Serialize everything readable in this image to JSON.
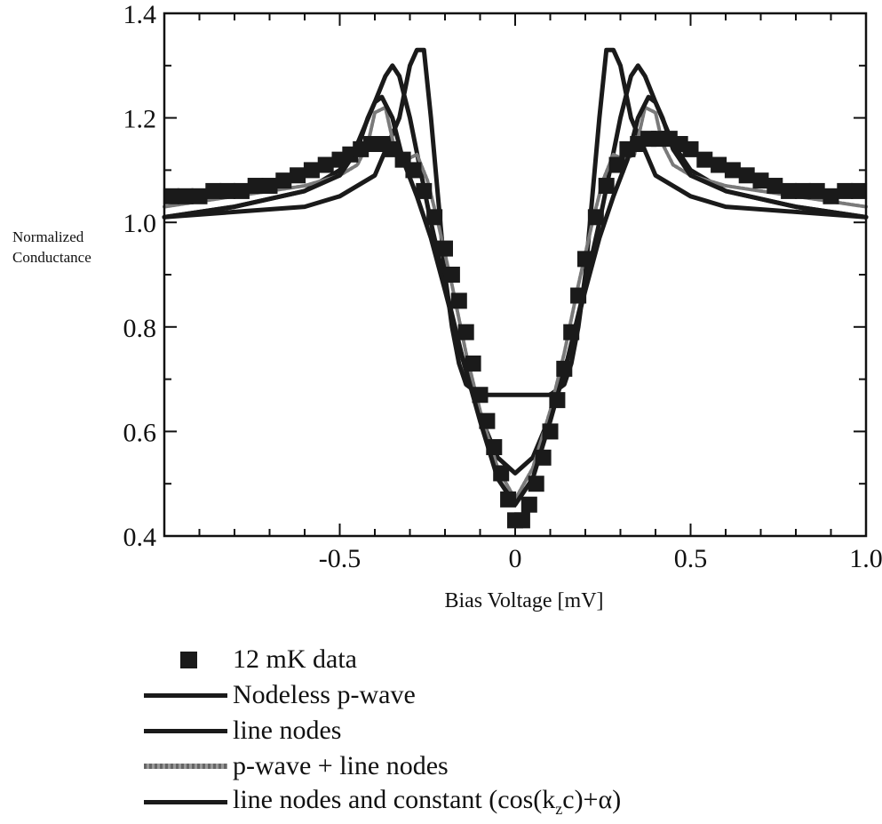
{
  "chart_data": {
    "type": "line",
    "title": "",
    "xlabel": "Bias Voltage [mV]",
    "ylabel_lines": [
      "Normalized",
      "Conductance"
    ],
    "xlim": [
      -1.0,
      1.0
    ],
    "ylim": [
      0.4,
      1.4
    ],
    "x_ticks": [
      -0.5,
      0,
      0.5,
      1.0
    ],
    "x_tick_labels": [
      "-0.5",
      "0",
      "0.5",
      "1.0"
    ],
    "y_ticks": [
      0.4,
      0.6,
      0.8,
      1.0,
      1.2,
      1.4
    ],
    "y_tick_labels": [
      "0.4",
      "0.6",
      "0.8",
      "1.0",
      "1.2",
      "1.4"
    ],
    "grid": false,
    "legend_position": "below",
    "series": [
      {
        "name": "12 mK data",
        "style": "markers",
        "color": "#1a1a1a",
        "x": [
          -0.98,
          -0.94,
          -0.9,
          -0.86,
          -0.82,
          -0.78,
          -0.74,
          -0.7,
          -0.66,
          -0.62,
          -0.58,
          -0.54,
          -0.5,
          -0.47,
          -0.44,
          -0.41,
          -0.38,
          -0.35,
          -0.32,
          -0.29,
          -0.26,
          -0.23,
          -0.2,
          -0.18,
          -0.16,
          -0.14,
          -0.12,
          -0.1,
          -0.08,
          -0.06,
          -0.04,
          -0.02,
          0.0,
          0.02,
          0.04,
          0.06,
          0.08,
          0.1,
          0.12,
          0.14,
          0.16,
          0.18,
          0.2,
          0.23,
          0.26,
          0.29,
          0.32,
          0.35,
          0.38,
          0.41,
          0.44,
          0.47,
          0.5,
          0.54,
          0.58,
          0.62,
          0.66,
          0.7,
          0.74,
          0.78,
          0.82,
          0.86,
          0.9,
          0.94,
          0.98
        ],
        "y": [
          1.05,
          1.05,
          1.05,
          1.06,
          1.06,
          1.06,
          1.07,
          1.07,
          1.08,
          1.09,
          1.1,
          1.11,
          1.12,
          1.13,
          1.14,
          1.15,
          1.15,
          1.14,
          1.12,
          1.1,
          1.06,
          1.01,
          0.95,
          0.9,
          0.85,
          0.79,
          0.73,
          0.67,
          0.62,
          0.57,
          0.52,
          0.47,
          0.43,
          0.43,
          0.46,
          0.5,
          0.55,
          0.6,
          0.66,
          0.72,
          0.79,
          0.86,
          0.93,
          1.01,
          1.07,
          1.11,
          1.14,
          1.15,
          1.16,
          1.16,
          1.16,
          1.15,
          1.14,
          1.12,
          1.11,
          1.1,
          1.09,
          1.08,
          1.07,
          1.06,
          1.06,
          1.06,
          1.05,
          1.06,
          1.06
        ]
      },
      {
        "name": "Nodeless p-wave",
        "style": "line",
        "color": "#1a1a1a",
        "x": [
          -1.0,
          -0.8,
          -0.6,
          -0.5,
          -0.4,
          -0.33,
          -0.3,
          -0.28,
          -0.26,
          -0.24,
          -0.22,
          -0.2,
          -0.18,
          -0.16,
          -0.14,
          -0.12,
          -0.1,
          -0.05,
          0.0,
          0.05,
          0.1,
          0.12,
          0.14,
          0.16,
          0.18,
          0.2,
          0.22,
          0.24,
          0.26,
          0.28,
          0.3,
          0.33,
          0.4,
          0.5,
          0.6,
          0.8,
          1.0
        ],
        "y": [
          1.01,
          1.02,
          1.03,
          1.05,
          1.09,
          1.2,
          1.3,
          1.33,
          1.33,
          1.2,
          1.05,
          0.9,
          0.8,
          0.73,
          0.69,
          0.68,
          0.67,
          0.67,
          0.67,
          0.67,
          0.67,
          0.68,
          0.69,
          0.73,
          0.8,
          0.9,
          1.05,
          1.2,
          1.33,
          1.33,
          1.3,
          1.2,
          1.09,
          1.05,
          1.03,
          1.02,
          1.01
        ]
      },
      {
        "name": "line nodes",
        "style": "line",
        "color": "#1a1a1a",
        "x": [
          -1.0,
          -0.8,
          -0.6,
          -0.5,
          -0.45,
          -0.4,
          -0.37,
          -0.35,
          -0.33,
          -0.3,
          -0.27,
          -0.24,
          -0.2,
          -0.15,
          -0.1,
          -0.05,
          0.0,
          0.05,
          0.1,
          0.15,
          0.2,
          0.24,
          0.27,
          0.3,
          0.33,
          0.35,
          0.37,
          0.4,
          0.45,
          0.5,
          0.6,
          0.8,
          1.0
        ],
        "y": [
          1.01,
          1.03,
          1.06,
          1.1,
          1.15,
          1.23,
          1.28,
          1.3,
          1.28,
          1.2,
          1.1,
          1.0,
          0.88,
          0.74,
          0.63,
          0.55,
          0.52,
          0.55,
          0.63,
          0.74,
          0.88,
          1.0,
          1.1,
          1.2,
          1.28,
          1.3,
          1.28,
          1.23,
          1.15,
          1.1,
          1.06,
          1.03,
          1.01
        ]
      },
      {
        "name": "p-wave + line nodes",
        "style": "line",
        "color": "#7a7a7a",
        "x": [
          -1.0,
          -0.8,
          -0.6,
          -0.5,
          -0.45,
          -0.42,
          -0.4,
          -0.37,
          -0.34,
          -0.31,
          -0.28,
          -0.25,
          -0.22,
          -0.18,
          -0.14,
          -0.1,
          -0.05,
          0.0,
          0.05,
          0.1,
          0.14,
          0.18,
          0.22,
          0.25,
          0.28,
          0.31,
          0.34,
          0.37,
          0.4,
          0.42,
          0.45,
          0.5,
          0.6,
          0.8,
          1.0
        ],
        "y": [
          1.03,
          1.05,
          1.07,
          1.09,
          1.11,
          1.15,
          1.21,
          1.22,
          1.13,
          1.12,
          1.13,
          1.08,
          1.0,
          0.88,
          0.75,
          0.64,
          0.53,
          0.47,
          0.53,
          0.64,
          0.75,
          0.88,
          1.0,
          1.08,
          1.13,
          1.12,
          1.13,
          1.22,
          1.21,
          1.15,
          1.11,
          1.09,
          1.07,
          1.05,
          1.03
        ]
      },
      {
        "name": "line nodes and constant",
        "style": "line",
        "color": "#1a1a1a",
        "x": [
          -1.0,
          -0.8,
          -0.6,
          -0.5,
          -0.45,
          -0.42,
          -0.4,
          -0.38,
          -0.35,
          -0.32,
          -0.28,
          -0.24,
          -0.2,
          -0.15,
          -0.1,
          -0.05,
          0.0,
          0.05,
          0.1,
          0.15,
          0.2,
          0.24,
          0.28,
          0.32,
          0.35,
          0.38,
          0.4,
          0.42,
          0.45,
          0.5,
          0.6,
          0.8,
          1.0
        ],
        "y": [
          1.01,
          1.03,
          1.06,
          1.09,
          1.14,
          1.2,
          1.23,
          1.24,
          1.2,
          1.12,
          1.05,
          0.97,
          0.87,
          0.74,
          0.62,
          0.51,
          0.46,
          0.51,
          0.62,
          0.74,
          0.87,
          0.97,
          1.05,
          1.12,
          1.2,
          1.24,
          1.23,
          1.2,
          1.14,
          1.09,
          1.06,
          1.03,
          1.01
        ]
      }
    ]
  },
  "legend": {
    "items": [
      {
        "label": "12 mK data",
        "symbol": "square"
      },
      {
        "label": "Nodeless p-wave",
        "symbol": "line"
      },
      {
        "label": "line nodes",
        "symbol": "line"
      },
      {
        "label": "p-wave + line nodes",
        "symbol": "line-gray"
      },
      {
        "label_prefix": "line nodes and constant (cos(k",
        "label_sub": "z",
        "label_suffix": "c)+α)",
        "symbol": "line"
      }
    ]
  }
}
